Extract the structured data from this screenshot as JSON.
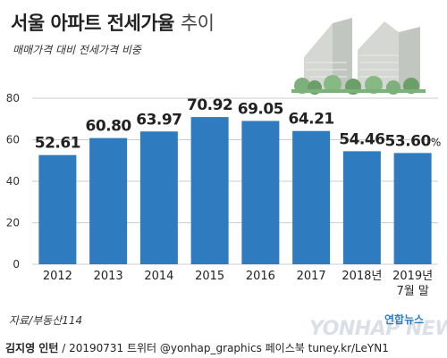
{
  "title_main": "서울 아파트 전세가율",
  "title_sub": "추이",
  "subtitle": "매매가격 대비 전세가격 비중",
  "source": "자료/부동산114",
  "credit_author": "김지영 인턴",
  "credit_rest": " / 20190731  트위터 @yonhap_graphics  페이스북 tuney.kr/LeYN1",
  "brand": "연합뉴스",
  "watermark": "YONHAP NEWS",
  "colors": {
    "bar": "#2e7bbf",
    "grid": "#cccccc",
    "text": "#222222"
  },
  "chart_data": {
    "type": "bar",
    "categories": [
      "2012",
      "2013",
      "2014",
      "2015",
      "2016",
      "2017",
      "2018년",
      "2019년\n7월 말"
    ],
    "values": [
      52.61,
      60.8,
      63.97,
      70.92,
      69.05,
      64.21,
      54.46,
      53.6
    ],
    "data_labels": [
      "52.61",
      "60.80",
      "63.97",
      "70.92",
      "69.05",
      "64.21",
      "54.46",
      "53.60%"
    ],
    "title": "서울 아파트 전세가율 추이",
    "xlabel": "",
    "ylabel": "",
    "ylim": [
      0,
      80
    ],
    "yticks": [
      0,
      20,
      40,
      60,
      80
    ],
    "grid": true,
    "legend": "none"
  }
}
